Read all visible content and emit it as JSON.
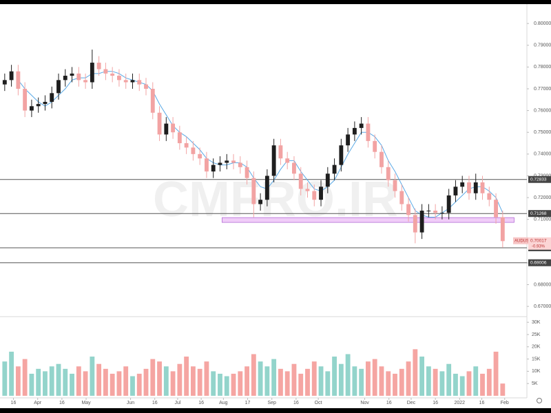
{
  "chart_data": {
    "type": "candlestick",
    "symbol": "AUDUSD",
    "watermark": "CMFRO.IR",
    "open": [
      0.772,
      0.774,
      0.778,
      0.77,
      0.76,
      0.762,
      0.763,
      0.764,
      0.768,
      0.774,
      0.776,
      0.777,
      0.774,
      0.773,
      0.782,
      0.779,
      0.777,
      0.776,
      0.774,
      0.773,
      0.774,
      0.772,
      0.77,
      0.759,
      0.749,
      0.754,
      0.75,
      0.745,
      0.743,
      0.74,
      0.738,
      0.732,
      0.735,
      0.736,
      0.737,
      0.736,
      0.734,
      0.729,
      0.717,
      0.719,
      0.73,
      0.744,
      0.738,
      0.736,
      0.731,
      0.724,
      0.723,
      0.719,
      0.725,
      0.731,
      0.735,
      0.744,
      0.749,
      0.752,
      0.754,
      0.746,
      0.741,
      0.734,
      0.728,
      0.723,
      0.717,
      0.712,
      0.704,
      0.714,
      0.714,
      0.713,
      0.713,
      0.721,
      0.725,
      0.727,
      0.722,
      0.727,
      0.722,
      0.719,
      0.711
    ],
    "high": [
      0.777,
      0.781,
      0.781,
      0.773,
      0.765,
      0.766,
      0.767,
      0.771,
      0.777,
      0.779,
      0.78,
      0.78,
      0.777,
      0.788,
      0.785,
      0.782,
      0.78,
      0.779,
      0.777,
      0.777,
      0.777,
      0.775,
      0.773,
      0.762,
      0.757,
      0.757,
      0.753,
      0.748,
      0.746,
      0.743,
      0.741,
      0.738,
      0.739,
      0.74,
      0.74,
      0.739,
      0.737,
      0.732,
      0.722,
      0.733,
      0.747,
      0.747,
      0.741,
      0.739,
      0.734,
      0.727,
      0.726,
      0.728,
      0.734,
      0.738,
      0.747,
      0.752,
      0.755,
      0.757,
      0.757,
      0.749,
      0.744,
      0.737,
      0.731,
      0.726,
      0.72,
      0.715,
      0.717,
      0.717,
      0.717,
      0.716,
      0.724,
      0.728,
      0.73,
      0.73,
      0.731,
      0.73,
      0.725,
      0.722,
      0.714
    ],
    "low": [
      0.769,
      0.771,
      0.767,
      0.757,
      0.757,
      0.759,
      0.76,
      0.761,
      0.765,
      0.771,
      0.773,
      0.771,
      0.77,
      0.77,
      0.776,
      0.774,
      0.773,
      0.771,
      0.77,
      0.77,
      0.769,
      0.767,
      0.756,
      0.746,
      0.746,
      0.747,
      0.742,
      0.74,
      0.737,
      0.735,
      0.729,
      0.729,
      0.732,
      0.733,
      0.733,
      0.731,
      0.726,
      0.711,
      0.714,
      0.716,
      0.727,
      0.735,
      0.733,
      0.728,
      0.721,
      0.72,
      0.716,
      0.716,
      0.722,
      0.728,
      0.732,
      0.741,
      0.746,
      0.749,
      0.743,
      0.738,
      0.731,
      0.725,
      0.72,
      0.714,
      0.709,
      0.699,
      0.701,
      0.711,
      0.71,
      0.71,
      0.71,
      0.718,
      0.722,
      0.719,
      0.719,
      0.719,
      0.716,
      0.708,
      0.697
    ],
    "close": [
      0.774,
      0.778,
      0.77,
      0.76,
      0.762,
      0.763,
      0.764,
      0.768,
      0.774,
      0.776,
      0.777,
      0.774,
      0.773,
      0.782,
      0.779,
      0.777,
      0.776,
      0.774,
      0.773,
      0.774,
      0.772,
      0.77,
      0.759,
      0.749,
      0.754,
      0.75,
      0.745,
      0.743,
      0.74,
      0.738,
      0.732,
      0.735,
      0.736,
      0.737,
      0.736,
      0.734,
      0.729,
      0.717,
      0.719,
      0.73,
      0.744,
      0.738,
      0.736,
      0.731,
      0.724,
      0.723,
      0.719,
      0.725,
      0.731,
      0.735,
      0.744,
      0.749,
      0.752,
      0.754,
      0.746,
      0.741,
      0.734,
      0.728,
      0.723,
      0.717,
      0.712,
      0.704,
      0.714,
      0.714,
      0.713,
      0.713,
      0.721,
      0.725,
      0.727,
      0.722,
      0.727,
      0.722,
      0.719,
      0.711,
      0.7
    ],
    "ma": [
      null,
      null,
      0.774,
      0.77,
      0.767,
      0.764,
      0.762,
      0.764,
      0.767,
      0.77,
      0.774,
      0.775,
      0.775,
      0.777,
      0.777,
      0.778,
      0.778,
      0.777,
      0.775,
      0.774,
      0.773,
      0.772,
      0.769,
      0.763,
      0.758,
      0.753,
      0.75,
      0.748,
      0.745,
      0.742,
      0.738,
      0.736,
      0.735,
      0.735,
      0.736,
      0.736,
      0.734,
      0.729,
      0.725,
      0.724,
      0.728,
      0.733,
      0.737,
      0.737,
      0.732,
      0.728,
      0.724,
      0.723,
      0.725,
      0.728,
      0.734,
      0.74,
      0.745,
      0.75,
      0.75,
      0.748,
      0.744,
      0.737,
      0.732,
      0.726,
      0.72,
      0.714,
      0.712,
      0.711,
      0.711,
      0.713,
      0.715,
      0.718,
      0.721,
      0.724,
      0.725,
      0.725,
      0.723,
      0.72,
      0.713
    ],
    "volume": [
      14000,
      18000,
      12000,
      15000,
      9000,
      11000,
      10000,
      12000,
      13000,
      11000,
      9000,
      12000,
      10000,
      16000,
      13000,
      11000,
      9000,
      10000,
      12000,
      8000,
      9000,
      11000,
      15000,
      14000,
      12000,
      10000,
      13000,
      16000,
      12000,
      11000,
      14000,
      10000,
      9000,
      8000,
      9000,
      10000,
      12000,
      17000,
      14000,
      12000,
      15000,
      11000,
      10000,
      13000,
      9000,
      11000,
      14000,
      12000,
      10000,
      16000,
      13000,
      17000,
      12000,
      11000,
      14000,
      15000,
      12000,
      10000,
      9000,
      11000,
      14000,
      19000,
      16000,
      12000,
      11000,
      10000,
      13000,
      9000,
      8000,
      10000,
      12000,
      9000,
      11000,
      18000,
      5000
    ],
    "up_color": "#1e1e1e",
    "down_color": "#f2a3a3",
    "ma_color": "#5aa9e6",
    "volume_up_color": "#93d4cb",
    "volume_down_color": "#f5a5a2",
    "xlim": [
      -0.7,
      77.6
    ],
    "ylim": [
      0.6653,
      0.8108
    ],
    "yticks": [
      {
        "value": 0.67,
        "label": "0.67000"
      },
      {
        "value": 0.68,
        "label": "0.68000"
      },
      {
        "value": 0.69,
        "label": "0.69000"
      },
      {
        "value": 0.7,
        "label": "0.70000"
      },
      {
        "value": 0.71,
        "label": "0.71000"
      },
      {
        "value": 0.72,
        "label": "0.72000"
      },
      {
        "value": 0.73,
        "label": "0.73000"
      },
      {
        "value": 0.74,
        "label": "0.74000"
      },
      {
        "value": 0.75,
        "label": "0.75000"
      },
      {
        "value": 0.76,
        "label": "0.76000"
      },
      {
        "value": 0.77,
        "label": "0.77000"
      },
      {
        "value": 0.78,
        "label": "0.78000"
      },
      {
        "value": 0.79,
        "label": "0.79000"
      },
      {
        "value": 0.8,
        "label": "0.80000"
      }
    ],
    "volume_ylim": [
      0,
      32300
    ],
    "volume_ticks": [
      {
        "value": 5000,
        "label": "5K"
      },
      {
        "value": 10000,
        "label": "10K"
      },
      {
        "value": 15000,
        "label": "15K"
      },
      {
        "value": 20000,
        "label": "20K"
      },
      {
        "value": 25000,
        "label": "25K"
      },
      {
        "value": 30000,
        "label": "30K"
      }
    ],
    "xticks": [
      {
        "value": 1.3,
        "label": "16"
      },
      {
        "value": 4.9,
        "label": "Apr"
      },
      {
        "value": 8.5,
        "label": "16"
      },
      {
        "value": 12.1,
        "label": "May"
      },
      {
        "value": 18.7,
        "label": "Jun"
      },
      {
        "value": 22.3,
        "label": "16"
      },
      {
        "value": 25.7,
        "label": "Jul"
      },
      {
        "value": 29.2,
        "label": "16"
      },
      {
        "value": 32.5,
        "label": "Aug"
      },
      {
        "value": 36.1,
        "label": "17"
      },
      {
        "value": 39.7,
        "label": "Sep"
      },
      {
        "value": 43.3,
        "label": "16"
      },
      {
        "value": 46.6,
        "label": "Oct"
      },
      {
        "value": 53.5,
        "label": "Nov"
      },
      {
        "value": 57.1,
        "label": "16"
      },
      {
        "value": 60.4,
        "label": "Dec"
      },
      {
        "value": 64.0,
        "label": "16"
      },
      {
        "value": 67.6,
        "label": "2022"
      },
      {
        "value": 70.9,
        "label": "16"
      },
      {
        "value": 74.3,
        "label": "Feb"
      }
    ],
    "levels": [
      0.72833,
      0.71268,
      0.69695,
      0.69006
    ],
    "zone": {
      "from": 0.7086,
      "to": 0.7108,
      "start": 32.3,
      "end": 75.7,
      "color": "#e9b8f5"
    },
    "last_price": {
      "value": 0.70017,
      "label": "0.70017",
      "change": "-0.93%"
    }
  }
}
